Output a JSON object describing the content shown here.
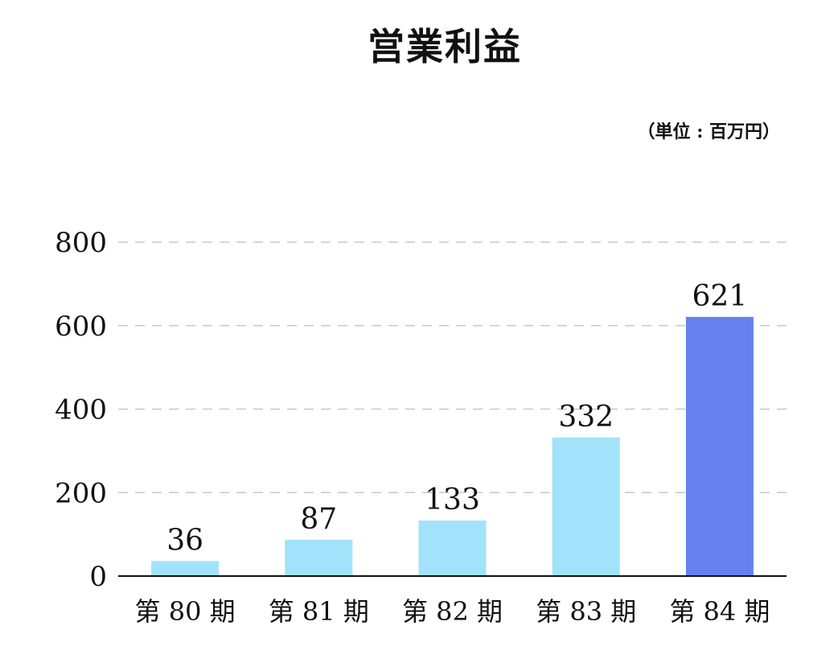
{
  "chart_data": {
    "type": "bar",
    "title": "営業利益",
    "unit": "（単位 : 百万円）",
    "categories": [
      "第 80 期",
      "第 81 期",
      "第 82 期",
      "第 83 期",
      "第 84 期"
    ],
    "values": [
      36,
      87,
      133,
      332,
      621
    ],
    "data_labels": [
      "36",
      "87",
      "133",
      "332",
      "621"
    ],
    "yticks": [
      "0",
      "200",
      "400",
      "600",
      "800"
    ],
    "ytick_values": [
      0,
      200,
      400,
      600,
      800
    ],
    "ylim": [
      0,
      800
    ],
    "xlabel": "",
    "ylabel": "",
    "grid": true,
    "bar_colors": [
      "#a2e2fb",
      "#a2e2fb",
      "#a2e2fb",
      "#a2e2fb",
      "#6780ef"
    ],
    "grid_color": "#c8c8c8",
    "axis_color": "#111111"
  }
}
